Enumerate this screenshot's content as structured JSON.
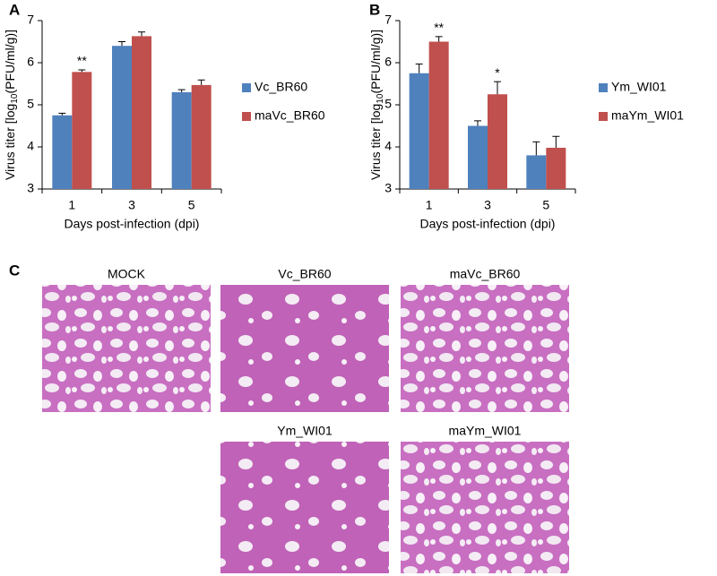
{
  "panel_labels": [
    "A",
    "B",
    "C"
  ],
  "chart_data": [
    {
      "type": "bar",
      "x_label": "Days post-infection (dpi)",
      "y_label": [
        "Virus titer [log",
        "10",
        "(PFU/ml/g)]"
      ],
      "categories": [
        "1",
        "3",
        "5"
      ],
      "ylim": [
        3,
        7
      ],
      "yticks": [
        3,
        4,
        5,
        6,
        7
      ],
      "series": [
        {
          "name": "Vc_BR60",
          "color": "#4f81bd",
          "values": [
            4.75,
            6.4,
            5.3
          ],
          "errors": [
            0.05,
            0.1,
            0.06
          ],
          "annotations": [
            null,
            null,
            null
          ]
        },
        {
          "name": "maVc_BR60",
          "color": "#c0504d",
          "values": [
            5.78,
            6.63,
            5.47
          ],
          "errors": [
            0.05,
            0.1,
            0.12
          ],
          "annotations": [
            "**",
            null,
            null
          ]
        }
      ]
    },
    {
      "type": "bar",
      "x_label": "Days post-infection (dpi)",
      "y_label": [
        "Virus titer [log",
        "10",
        "(PFU/ml/g)]"
      ],
      "categories": [
        "1",
        "3",
        "5"
      ],
      "ylim": [
        3,
        7
      ],
      "yticks": [
        3,
        4,
        5,
        6,
        7
      ],
      "series": [
        {
          "name": "Ym_WI01",
          "color": "#4f81bd",
          "values": [
            5.75,
            4.5,
            3.8
          ],
          "errors": [
            0.22,
            0.12,
            0.32
          ],
          "annotations": [
            null,
            null,
            null
          ]
        },
        {
          "name": "maYm_WI01",
          "color": "#c0504d",
          "values": [
            6.5,
            5.25,
            3.98
          ],
          "errors": [
            0.12,
            0.3,
            0.27
          ],
          "annotations": [
            "**",
            "*",
            null
          ]
        }
      ]
    }
  ],
  "micrographs": [
    "MOCK",
    "Vc_BR60",
    "maVc_BR60",
    "Ym_WI01",
    "maYm_WI01"
  ]
}
